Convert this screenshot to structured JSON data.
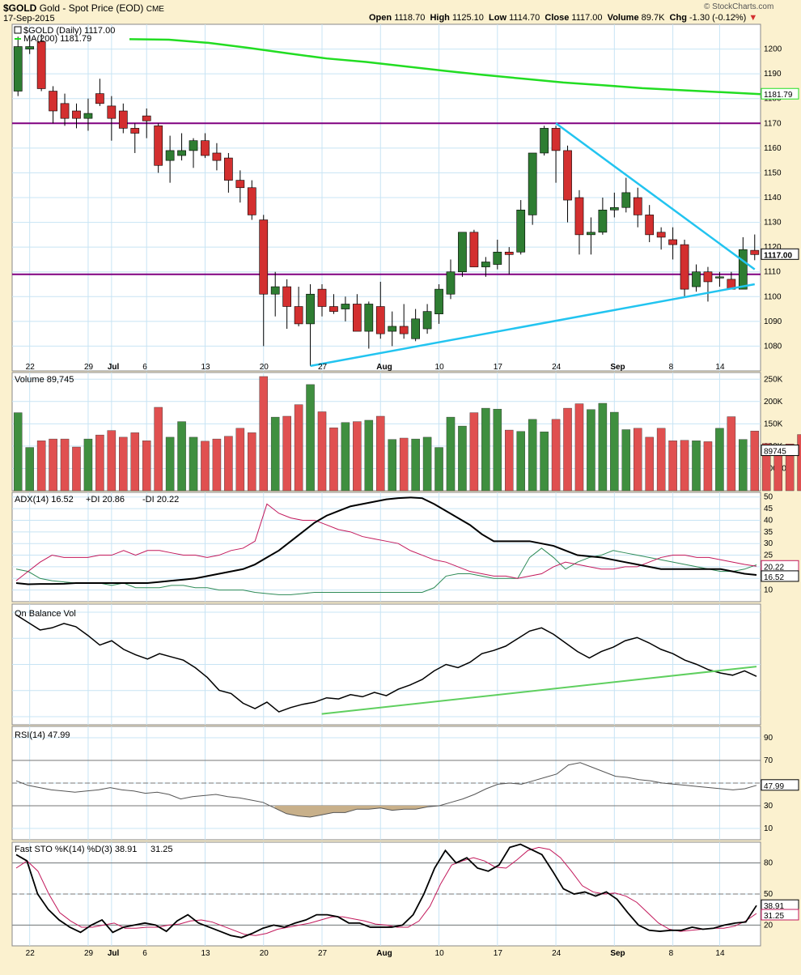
{
  "header": {
    "symbol": "$GOLD",
    "name": "Gold - Spot Price (EOD)",
    "exchange": "CME",
    "date": "17-Sep-2015",
    "watermark": "© StockCharts.com",
    "open_label": "Open",
    "open": "1118.70",
    "high_label": "High",
    "high": "1125.10",
    "low_label": "Low",
    "low": "1114.70",
    "close_label": "Close",
    "close": "1117.00",
    "volume_label": "Volume",
    "volume": "89.7K",
    "chg_label": "Chg",
    "chg": "-1.30 (-0.12%)"
  },
  "colors": {
    "up": "#2e7d32",
    "down": "#d32f2f",
    "ma": "#22dd22",
    "support": "#800080",
    "trend": "#22c4f0",
    "grid": "#c8e4f4",
    "bg": "#fbf1cf",
    "panel": "#ffffff"
  },
  "chart_data": [
    {
      "panel": "price",
      "type": "candlestick",
      "legend": [
        "$GOLD (Daily) 1117.00",
        "MA(200) 1181.79"
      ],
      "x_tick_labels": [
        "22",
        "29",
        "Jul",
        "6",
        "13",
        "20",
        "27",
        "Aug",
        "10",
        "17",
        "24",
        "Sep",
        "8",
        "14"
      ],
      "ylim": [
        1070,
        1210
      ],
      "y_ticks": [
        1080,
        1090,
        1100,
        1110,
        1120,
        1130,
        1140,
        1150,
        1160,
        1170,
        1180,
        1190,
        1200
      ],
      "last_value_tag": "1117.00",
      "ma_tag": "1181.79",
      "candles": [
        {
          "o": 1183,
          "h": 1205,
          "l": 1181,
          "c": 1201
        },
        {
          "o": 1200,
          "h": 1205,
          "l": 1198,
          "c": 1201
        },
        {
          "o": 1203,
          "h": 1206,
          "l": 1183,
          "c": 1184
        },
        {
          "o": 1183,
          "h": 1185,
          "l": 1170,
          "c": 1175
        },
        {
          "o": 1178,
          "h": 1182,
          "l": 1169,
          "c": 1172
        },
        {
          "o": 1175,
          "h": 1178,
          "l": 1168,
          "c": 1172
        },
        {
          "o": 1172,
          "h": 1180,
          "l": 1167,
          "c": 1174
        },
        {
          "o": 1182,
          "h": 1188,
          "l": 1177,
          "c": 1178
        },
        {
          "o": 1177,
          "h": 1181,
          "l": 1163,
          "c": 1172
        },
        {
          "o": 1175,
          "h": 1178,
          "l": 1166,
          "c": 1168
        },
        {
          "o": 1168,
          "h": 1170,
          "l": 1158,
          "c": 1166
        },
        {
          "o": 1173,
          "h": 1176,
          "l": 1164,
          "c": 1171
        },
        {
          "o": 1169,
          "h": 1170,
          "l": 1150,
          "c": 1153
        },
        {
          "o": 1155,
          "h": 1165,
          "l": 1146,
          "c": 1159
        },
        {
          "o": 1157,
          "h": 1166,
          "l": 1155,
          "c": 1159
        },
        {
          "o": 1159,
          "h": 1164,
          "l": 1152,
          "c": 1163
        },
        {
          "o": 1163,
          "h": 1166,
          "l": 1156,
          "c": 1157
        },
        {
          "o": 1158,
          "h": 1162,
          "l": 1151,
          "c": 1155
        },
        {
          "o": 1156,
          "h": 1158,
          "l": 1142,
          "c": 1147
        },
        {
          "o": 1147,
          "h": 1151,
          "l": 1138,
          "c": 1144
        },
        {
          "o": 1144,
          "h": 1147,
          "l": 1131,
          "c": 1133
        },
        {
          "o": 1131,
          "h": 1133,
          "l": 1080,
          "c": 1101
        },
        {
          "o": 1101,
          "h": 1110,
          "l": 1092,
          "c": 1104
        },
        {
          "o": 1104,
          "h": 1107,
          "l": 1087,
          "c": 1096
        },
        {
          "o": 1096,
          "h": 1104,
          "l": 1088,
          "c": 1089
        },
        {
          "o": 1089,
          "h": 1105,
          "l": 1072,
          "c": 1101
        },
        {
          "o": 1103,
          "h": 1105,
          "l": 1092,
          "c": 1096
        },
        {
          "o": 1096,
          "h": 1101,
          "l": 1093,
          "c": 1094
        },
        {
          "o": 1095,
          "h": 1100,
          "l": 1090,
          "c": 1097
        },
        {
          "o": 1097,
          "h": 1101,
          "l": 1087,
          "c": 1086
        },
        {
          "o": 1086,
          "h": 1098,
          "l": 1079,
          "c": 1097
        },
        {
          "o": 1096,
          "h": 1106,
          "l": 1083,
          "c": 1085
        },
        {
          "o": 1086,
          "h": 1094,
          "l": 1080,
          "c": 1088
        },
        {
          "o": 1088,
          "h": 1097,
          "l": 1083,
          "c": 1085
        },
        {
          "o": 1083,
          "h": 1095,
          "l": 1082,
          "c": 1091
        },
        {
          "o": 1087,
          "h": 1097,
          "l": 1085,
          "c": 1094
        },
        {
          "o": 1093,
          "h": 1105,
          "l": 1089,
          "c": 1103
        },
        {
          "o": 1101,
          "h": 1115,
          "l": 1099,
          "c": 1110
        },
        {
          "o": 1110,
          "h": 1126,
          "l": 1108,
          "c": 1126
        },
        {
          "o": 1126,
          "h": 1127,
          "l": 1112,
          "c": 1112
        },
        {
          "o": 1112,
          "h": 1116,
          "l": 1108,
          "c": 1114
        },
        {
          "o": 1113,
          "h": 1123,
          "l": 1111,
          "c": 1118
        },
        {
          "o": 1118,
          "h": 1120,
          "l": 1109,
          "c": 1117
        },
        {
          "o": 1118,
          "h": 1139,
          "l": 1117,
          "c": 1135
        },
        {
          "o": 1133,
          "h": 1158,
          "l": 1129,
          "c": 1158
        },
        {
          "o": 1158,
          "h": 1169,
          "l": 1157,
          "c": 1168
        },
        {
          "o": 1168,
          "h": 1169,
          "l": 1146,
          "c": 1159
        },
        {
          "o": 1159,
          "h": 1161,
          "l": 1130,
          "c": 1139
        },
        {
          "o": 1140,
          "h": 1143,
          "l": 1117,
          "c": 1125
        },
        {
          "o": 1125,
          "h": 1132,
          "l": 1117,
          "c": 1126
        },
        {
          "o": 1126,
          "h": 1140,
          "l": 1125,
          "c": 1135
        },
        {
          "o": 1135,
          "h": 1142,
          "l": 1132,
          "c": 1136
        },
        {
          "o": 1136,
          "h": 1148,
          "l": 1134,
          "c": 1142
        },
        {
          "o": 1140,
          "h": 1144,
          "l": 1128,
          "c": 1133
        },
        {
          "o": 1133,
          "h": 1137,
          "l": 1122,
          "c": 1125
        },
        {
          "o": 1126,
          "h": 1128,
          "l": 1119,
          "c": 1124
        },
        {
          "o": 1123,
          "h": 1128,
          "l": 1115,
          "c": 1121
        },
        {
          "o": 1121,
          "h": 1123,
          "l": 1100,
          "c": 1103
        },
        {
          "o": 1104,
          "h": 1113,
          "l": 1102,
          "c": 1110
        },
        {
          "o": 1110,
          "h": 1112,
          "l": 1098,
          "c": 1106
        },
        {
          "o": 1108,
          "h": 1110,
          "l": 1104,
          "c": 1108
        },
        {
          "o": 1107,
          "h": 1110,
          "l": 1103,
          "c": 1103
        },
        {
          "o": 1103,
          "h": 1124,
          "l": 1103,
          "c": 1119
        },
        {
          "o": 1118.7,
          "h": 1125.1,
          "l": 1114.7,
          "c": 1117.0
        }
      ],
      "ma200": [
        1204,
        1203.8,
        1202.5,
        1200.5,
        1198.3,
        1196.2,
        1194.8,
        1193,
        1191.2,
        1189.5,
        1188,
        1186.5,
        1185.4,
        1184.2,
        1183.4,
        1182.6,
        1181.79
      ],
      "horizontal_lines": [
        1170,
        1109
      ],
      "trendlines": [
        {
          "from": [
            25,
            1072
          ],
          "to": [
            63,
            1105
          ]
        },
        {
          "from": [
            46,
            1170
          ],
          "to": [
            63,
            1111
          ]
        }
      ]
    },
    {
      "panel": "volume",
      "type": "bar",
      "legend": "Volume 89,745",
      "tag": "89745",
      "y_ticks_labels": [
        "50000",
        "100K",
        "150K",
        "200K",
        "250K"
      ],
      "y_ticks": [
        50000,
        100000,
        150000,
        200000,
        250000
      ],
      "ylim": [
        0,
        265000
      ],
      "values": [
        175000,
        97000,
        112000,
        116000,
        116000,
        98000,
        116000,
        125000,
        135000,
        120000,
        130000,
        112000,
        187000,
        120000,
        155000,
        120000,
        111000,
        116000,
        122000,
        140000,
        130000,
        256000,
        165000,
        167000,
        193000,
        238000,
        177000,
        141000,
        153000,
        155000,
        158000,
        167000,
        115000,
        118000,
        116000,
        120000,
        97000,
        165000,
        145000,
        175000,
        185000,
        183000,
        136000,
        133000,
        160000,
        132000,
        160000,
        185000,
        195000,
        182000,
        196000,
        176000,
        137000,
        140000,
        120000,
        140000,
        112000,
        113000,
        112000,
        110000,
        140000,
        166000,
        115000,
        134000,
        106000,
        95000,
        105000,
        126000,
        90000
      ]
    },
    {
      "panel": "adx",
      "type": "line",
      "legend": [
        "ADX(14) 16.52",
        "+DI 20.86",
        "-DI 20.22"
      ],
      "y_ticks": [
        10,
        15,
        20,
        25,
        30,
        35,
        40,
        45,
        50
      ],
      "ylim": [
        5,
        52
      ],
      "tags": [
        "20.22",
        "16.52"
      ],
      "adx": [
        13,
        12.5,
        12.6,
        12.6,
        12.7,
        13,
        13,
        13,
        13,
        13,
        13,
        13,
        13.5,
        14,
        14.5,
        15,
        16,
        17,
        18,
        19,
        21,
        24,
        27,
        31,
        35,
        39,
        42,
        44,
        46,
        47,
        48,
        49,
        49.5,
        49.8,
        49.5,
        47,
        44,
        41,
        38,
        34,
        31,
        31,
        31,
        31,
        30,
        29,
        27,
        25,
        24.5,
        24,
        23,
        22,
        21,
        20,
        19,
        19,
        19,
        19,
        19,
        19,
        18,
        17,
        16.5
      ],
      "plus_di": [
        19,
        18,
        15,
        14,
        13.5,
        13,
        13,
        13,
        12,
        13,
        11,
        11,
        11,
        12,
        12,
        11,
        11,
        10,
        10,
        10,
        9,
        8.5,
        8,
        8,
        8.5,
        9,
        9,
        9,
        9,
        9,
        9,
        9,
        9,
        9,
        9,
        11,
        16,
        17,
        17,
        16,
        15,
        15,
        15,
        24,
        28,
        24,
        19,
        22,
        24,
        25,
        27,
        26,
        25,
        24,
        23,
        22,
        21,
        20,
        19,
        18,
        18,
        19,
        20.86
      ],
      "minus_di": [
        14,
        18,
        22,
        25,
        24,
        24,
        24,
        25,
        25,
        27,
        25,
        27,
        27,
        26,
        25,
        25,
        24,
        25,
        27,
        28,
        31,
        47,
        43,
        41,
        40,
        40,
        38,
        36,
        35,
        33,
        32,
        31,
        30,
        27,
        25,
        23,
        22,
        20,
        18,
        17,
        16,
        16,
        15,
        16,
        17,
        20,
        22,
        21,
        20,
        19,
        19,
        20,
        20,
        22,
        24,
        25,
        25,
        24,
        24,
        23,
        22,
        21,
        20.22
      ]
    },
    {
      "panel": "obv",
      "type": "line",
      "legend": "On Balance Vol",
      "obv": [
        96,
        89,
        82,
        84,
        88,
        85,
        77,
        68,
        72,
        64,
        59,
        55,
        60,
        57,
        54,
        47,
        38,
        26,
        23,
        14,
        9,
        15,
        6,
        10,
        13,
        15,
        19,
        18,
        22,
        20,
        24,
        21,
        27,
        31,
        36,
        44,
        50,
        47,
        52,
        60,
        63,
        67,
        74,
        81,
        84,
        78,
        70,
        62,
        56,
        62,
        66,
        72,
        75,
        70,
        64,
        60,
        54,
        50,
        45,
        42,
        40,
        44,
        39
      ],
      "trend": {
        "from": [
          26,
          4
        ],
        "to": [
          63,
          48
        ]
      }
    },
    {
      "panel": "rsi",
      "type": "line",
      "legend": "RSI(14) 47.99",
      "tag": "47.99",
      "y_ticks": [
        10,
        30,
        50,
        70,
        90
      ],
      "ylim": [
        0,
        100
      ],
      "rsi": [
        52,
        48,
        46,
        44,
        43,
        42,
        43,
        44,
        46,
        44,
        43,
        41,
        42,
        40,
        36,
        38,
        39,
        40,
        38,
        37,
        35,
        33,
        28,
        23,
        21,
        20,
        22,
        24,
        24,
        27,
        27,
        28,
        26,
        27,
        27,
        29,
        30,
        33,
        36,
        40,
        45,
        49,
        50,
        49,
        52,
        55,
        58,
        66,
        68,
        64,
        60,
        56,
        55,
        53,
        52,
        50,
        49,
        48,
        47,
        46,
        45,
        44,
        45,
        47.99
      ],
      "bands": [
        30,
        70
      ]
    },
    {
      "panel": "stochastic",
      "type": "line",
      "legend": [
        "Fast STO %K(14) %D(3) 38.91",
        "31.25"
      ],
      "tags": [
        "38.91",
        "31.25"
      ],
      "y_ticks": [
        20,
        50,
        80
      ],
      "ylim": [
        0,
        100
      ],
      "k": [
        88,
        82,
        50,
        35,
        25,
        18,
        13,
        20,
        25,
        13,
        18,
        20,
        22,
        20,
        14,
        24,
        30,
        22,
        18,
        14,
        10,
        8,
        12,
        17,
        20,
        18,
        22,
        25,
        30,
        30,
        28,
        22,
        22,
        18,
        18,
        18,
        20,
        30,
        50,
        75,
        92,
        80,
        85,
        75,
        72,
        78,
        95,
        98,
        93,
        88,
        72,
        55,
        50,
        52,
        48,
        52,
        45,
        32,
        20,
        15,
        14,
        15,
        15,
        18,
        16,
        17,
        20,
        22,
        23,
        38.91
      ],
      "d": [
        75,
        82,
        72,
        50,
        32,
        24,
        18,
        18,
        20,
        22,
        17,
        17,
        18,
        18,
        20,
        21,
        24,
        25,
        23,
        19,
        15,
        11,
        10,
        12,
        16,
        18,
        20,
        22,
        25,
        28,
        28,
        26,
        24,
        21,
        20,
        18,
        18,
        24,
        38,
        60,
        78,
        82,
        85,
        82,
        76,
        75,
        83,
        92,
        95,
        93,
        85,
        72,
        58,
        52,
        50,
        51,
        48,
        42,
        32,
        22,
        16,
        14,
        15,
        16,
        17,
        17,
        19,
        24,
        31.25
      ],
      "bands": [
        20,
        50,
        80
      ]
    }
  ]
}
